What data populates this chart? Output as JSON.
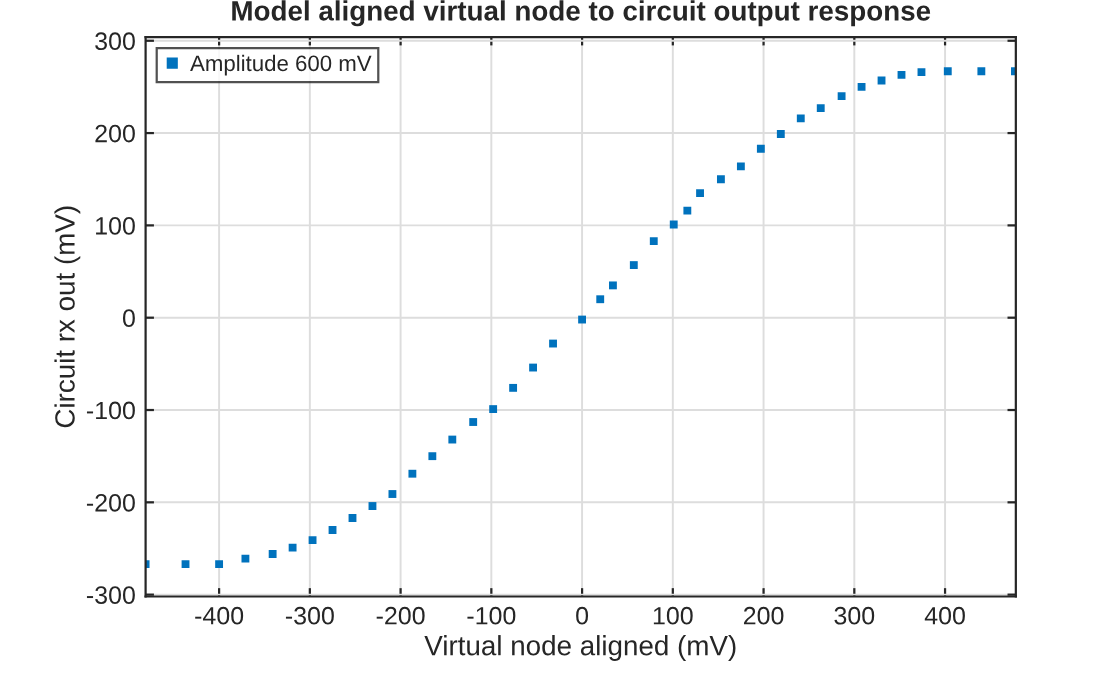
{
  "chart_data": {
    "type": "scatter",
    "title": "Model aligned virtual node to circuit output response",
    "xlabel": "Virtual node aligned (mV)",
    "ylabel": "Circuit rx out (mV)",
    "x": [
      -481,
      -437,
      -400,
      -371,
      -341,
      -319,
      -297,
      -275,
      -253,
      -231,
      -209,
      -187,
      -165,
      -143,
      -120,
      -98,
      -76,
      -54,
      -32,
      0,
      20,
      34,
      57,
      79,
      101,
      116,
      130,
      153,
      175,
      197,
      219,
      241,
      263,
      286,
      308,
      330,
      352,
      374,
      403,
      440,
      477
    ],
    "series": [
      {
        "name": "Amplitude 600 mV",
        "color": "#0072bd",
        "values": [
          -267,
          -267,
          -267,
          -261,
          -256,
          -249,
          -241,
          -230,
          -217,
          -204,
          -191,
          -169,
          -150,
          -132,
          -113,
          -99,
          -76,
          -54,
          -28,
          -2,
          20,
          35,
          57,
          83,
          101,
          116,
          135,
          150,
          164,
          183,
          199,
          216,
          227,
          240,
          250,
          257,
          263,
          266,
          267,
          267,
          267
        ]
      }
    ],
    "xlim": [
      -481,
      478
    ],
    "ylim": [
      -302,
      304
    ],
    "xticks": [
      -400,
      -300,
      -200,
      -100,
      0,
      100,
      200,
      300,
      400
    ],
    "yticks": [
      -300,
      -200,
      -100,
      0,
      100,
      200,
      300
    ],
    "grid": true,
    "legend": "top left",
    "marker": "square"
  }
}
